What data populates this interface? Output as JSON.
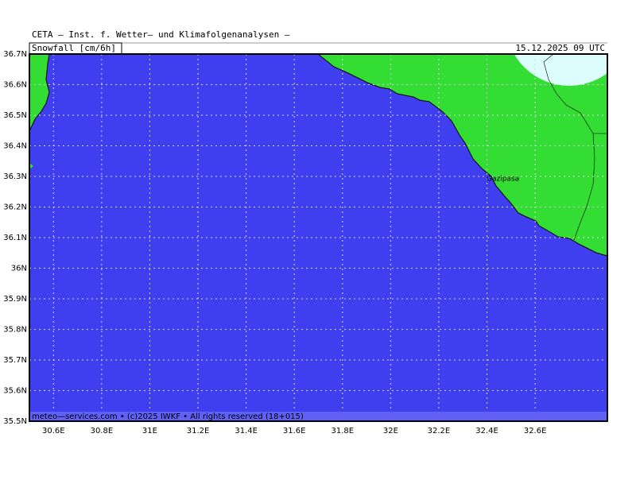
{
  "header": {
    "title": "CETA — Inst. f. Wetter— und Klimafolgenanalysen —",
    "field": "Snowfall [cm/6h]",
    "date": "15.12.2025 09 UTC"
  },
  "map": {
    "lat_labels": [
      "36.7N",
      "36.6N",
      "36.5N",
      "36.4N",
      "36.3N",
      "36.2N",
      "36.1N",
      "36N",
      "35.9N",
      "35.8N",
      "35.7N",
      "35.6N",
      "35.5N"
    ],
    "lon_labels": [
      "30.6E",
      "30.8E",
      "31E",
      "31.2E",
      "31.4E",
      "31.6E",
      "31.8E",
      "32E",
      "32.2E",
      "32.4E",
      "32.6E"
    ],
    "places": [
      "Gazipasa"
    ]
  },
  "footer": {
    "credit": "meteo—services.com • (c)2025 IWKF • All rights reserved (18+015)"
  }
}
